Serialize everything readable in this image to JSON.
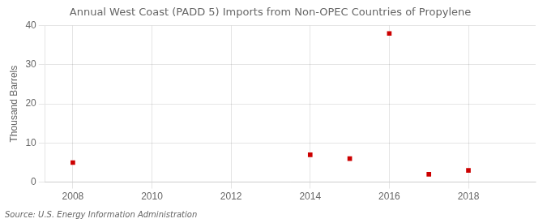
{
  "chart_data": {
    "type": "scatter",
    "title": "Annual West Coast (PADD 5) Imports from Non-OPEC Countries of Propylene",
    "ylabel": "Thousand Barrels",
    "source": "Source: U.S. Energy Information Administration",
    "x": [
      2008,
      2014,
      2015,
      2016,
      2017,
      2018
    ],
    "values": [
      5,
      7,
      6,
      38,
      2,
      3
    ],
    "color": "#cc0000",
    "marker": "square",
    "xlim": [
      2007.3,
      2019.7
    ],
    "ylim": [
      0,
      40
    ],
    "xticks": [
      2008,
      2010,
      2012,
      2014,
      2016,
      2018
    ],
    "yticks": [
      0,
      10,
      20,
      30,
      40
    ],
    "grid": true
  }
}
